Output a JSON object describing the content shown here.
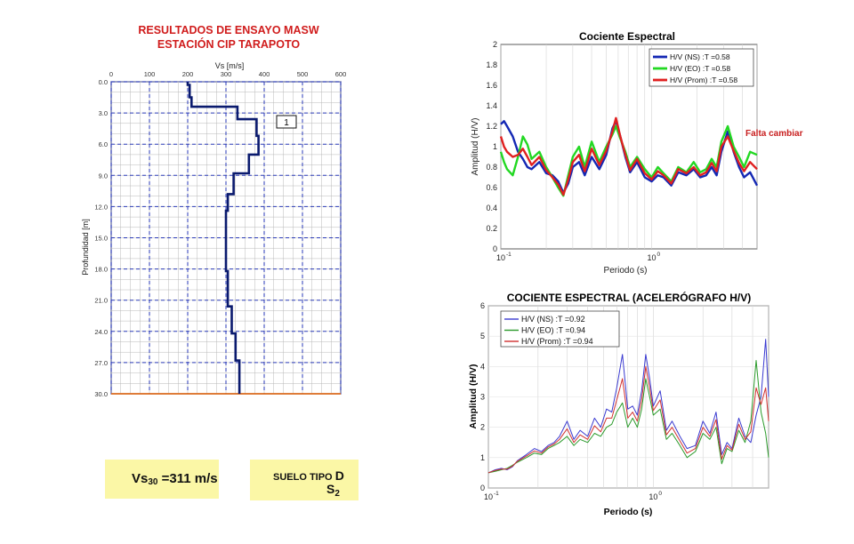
{
  "masw": {
    "title_line1": "RESULTADOS DE ENSAYO MASW",
    "title_line2": "ESTACIÓN CIP TARAPOTO",
    "layer_label": "1"
  },
  "vs30": {
    "prefix": "Vs",
    "sub": "30",
    "value": " =311 m/s"
  },
  "suelo": {
    "label": "SUELO TIPO ",
    "tipo": "D",
    "s_letter": "S",
    "s_sub": "2"
  },
  "annotation": {
    "text": "Falta cambiar",
    "color": "#c82020"
  },
  "chart_data": [
    {
      "type": "line",
      "title": "",
      "xlabel": "Vs [m/s]",
      "ylabel": "Profundidad [m]",
      "xlim": [
        0,
        600
      ],
      "ylim": [
        30,
        0
      ],
      "y_inverted": true,
      "grid": true,
      "x_ticks": [
        "0",
        "100",
        "200",
        "300",
        "400",
        "500",
        "600"
      ],
      "y_ticks": [
        "0.0",
        "3.0",
        "6.0",
        "9.0",
        "12.0",
        "15.0",
        "18.0",
        "21.0",
        "24.0",
        "27.0",
        "30.0"
      ],
      "series": [
        {
          "color": "#0a1a6e",
          "points": [
            [
              200,
              0
            ],
            [
              200,
              0.3
            ],
            [
              205,
              0.3
            ],
            [
              205,
              1.5
            ],
            [
              210,
              1.5
            ],
            [
              210,
              2.4
            ],
            [
              330,
              2.4
            ],
            [
              330,
              3.6
            ],
            [
              380,
              3.6
            ],
            [
              380,
              5.2
            ],
            [
              385,
              5.2
            ],
            [
              385,
              7.0
            ],
            [
              360,
              7.0
            ],
            [
              360,
              8.8
            ],
            [
              320,
              8.8
            ],
            [
              320,
              10.8
            ],
            [
              305,
              10.8
            ],
            [
              305,
              12.4
            ],
            [
              300,
              12.4
            ],
            [
              300,
              18.2
            ],
            [
              305,
              18.2
            ],
            [
              305,
              21.6
            ],
            [
              315,
              21.6
            ],
            [
              315,
              24.2
            ],
            [
              325,
              24.2
            ],
            [
              325,
              26.8
            ],
            [
              335,
              26.8
            ],
            [
              335,
              30
            ]
          ]
        }
      ]
    },
    {
      "type": "line",
      "title": "Cociente Espectral",
      "xlabel": "Periodo (s)",
      "ylabel": "Amplitud (H/V)",
      "x_scale": "log",
      "xlim": [
        0.1,
        5
      ],
      "ylim": [
        0,
        2
      ],
      "y_ticks": [
        "0",
        "0.2",
        "0.4",
        "0.6",
        "0.8",
        "1",
        "1.2",
        "1.4",
        "1.6",
        "1.8",
        "2"
      ],
      "x_ticks": [
        "10^-1",
        "10^0"
      ],
      "legend_position": "top-right",
      "series": [
        {
          "name": "H/V (NS) :T =0.58",
          "color": "#1428b4",
          "x": [
            0.1,
            0.105,
            0.11,
            0.12,
            0.13,
            0.14,
            0.15,
            0.16,
            0.18,
            0.2,
            0.22,
            0.24,
            0.26,
            0.28,
            0.3,
            0.33,
            0.36,
            0.4,
            0.45,
            0.5,
            0.55,
            0.58,
            0.62,
            0.67,
            0.72,
            0.8,
            0.9,
            1.0,
            1.1,
            1.2,
            1.35,
            1.5,
            1.7,
            1.9,
            2.1,
            2.3,
            2.5,
            2.7,
            2.9,
            3.2,
            3.5,
            3.8,
            4.1,
            4.5,
            5.0
          ],
          "y": [
            1.22,
            1.25,
            1.2,
            1.1,
            0.95,
            0.88,
            0.8,
            0.78,
            0.85,
            0.74,
            0.72,
            0.66,
            0.55,
            0.64,
            0.8,
            0.85,
            0.72,
            0.9,
            0.78,
            0.92,
            1.18,
            1.25,
            1.1,
            0.9,
            0.75,
            0.85,
            0.7,
            0.66,
            0.72,
            0.7,
            0.62,
            0.75,
            0.72,
            0.78,
            0.7,
            0.72,
            0.8,
            0.72,
            0.95,
            1.15,
            0.95,
            0.8,
            0.7,
            0.75,
            0.62
          ]
        },
        {
          "name": "H/V (EO) :T =0.58",
          "color": "#22d822",
          "x": [
            0.1,
            0.105,
            0.11,
            0.12,
            0.13,
            0.14,
            0.15,
            0.16,
            0.18,
            0.2,
            0.22,
            0.24,
            0.26,
            0.28,
            0.3,
            0.33,
            0.36,
            0.4,
            0.45,
            0.5,
            0.55,
            0.58,
            0.62,
            0.67,
            0.72,
            0.8,
            0.9,
            1.0,
            1.1,
            1.2,
            1.35,
            1.5,
            1.7,
            1.9,
            2.1,
            2.3,
            2.5,
            2.7,
            2.9,
            3.2,
            3.5,
            3.8,
            4.1,
            4.5,
            5.0
          ],
          "y": [
            0.95,
            0.85,
            0.78,
            0.72,
            0.9,
            1.1,
            1.02,
            0.88,
            0.95,
            0.8,
            0.7,
            0.6,
            0.52,
            0.72,
            0.9,
            1.0,
            0.8,
            1.05,
            0.85,
            1.0,
            1.12,
            1.2,
            1.08,
            0.95,
            0.8,
            0.9,
            0.78,
            0.7,
            0.8,
            0.74,
            0.66,
            0.8,
            0.75,
            0.85,
            0.75,
            0.78,
            0.88,
            0.8,
            1.05,
            1.2,
            1.0,
            0.9,
            0.8,
            0.95,
            0.92
          ]
        },
        {
          "name": "H/V (Prom) :T =0.58",
          "color": "#e02020",
          "x": [
            0.1,
            0.105,
            0.11,
            0.12,
            0.13,
            0.14,
            0.15,
            0.16,
            0.18,
            0.2,
            0.22,
            0.24,
            0.26,
            0.28,
            0.3,
            0.33,
            0.36,
            0.4,
            0.45,
            0.5,
            0.55,
            0.58,
            0.62,
            0.67,
            0.72,
            0.8,
            0.9,
            1.0,
            1.1,
            1.2,
            1.35,
            1.5,
            1.7,
            1.9,
            2.1,
            2.3,
            2.5,
            2.7,
            2.9,
            3.2,
            3.5,
            3.8,
            4.1,
            4.5,
            5.0
          ],
          "y": [
            1.1,
            1.0,
            0.95,
            0.9,
            0.92,
            0.98,
            0.9,
            0.82,
            0.9,
            0.77,
            0.7,
            0.63,
            0.53,
            0.68,
            0.85,
            0.92,
            0.76,
            0.98,
            0.82,
            0.96,
            1.15,
            1.28,
            1.1,
            0.92,
            0.77,
            0.88,
            0.74,
            0.68,
            0.76,
            0.72,
            0.64,
            0.78,
            0.74,
            0.8,
            0.72,
            0.75,
            0.84,
            0.76,
            1.0,
            1.1,
            0.96,
            0.84,
            0.76,
            0.85,
            0.78
          ]
        }
      ]
    },
    {
      "type": "line",
      "title": "COCIENTE ESPECTRAL (ACELERÓGRAFO H/V)",
      "xlabel": "Periodo (s)",
      "ylabel": "Amplitud (H/V)",
      "x_scale": "log",
      "xlim": [
        0.1,
        5
      ],
      "ylim": [
        0,
        6
      ],
      "y_ticks": [
        "0",
        "1",
        "2",
        "3",
        "4",
        "5",
        "6"
      ],
      "x_ticks": [
        "10^-1",
        "10^0"
      ],
      "legend_position": "top-left",
      "series": [
        {
          "name": "H/V (NS) :T =0.92",
          "color": "#3a3ad0",
          "x": [
            0.1,
            0.11,
            0.12,
            0.13,
            0.14,
            0.15,
            0.17,
            0.19,
            0.21,
            0.23,
            0.25,
            0.27,
            0.3,
            0.33,
            0.36,
            0.4,
            0.44,
            0.48,
            0.52,
            0.56,
            0.6,
            0.65,
            0.7,
            0.75,
            0.8,
            0.85,
            0.9,
            0.95,
            1.0,
            1.1,
            1.2,
            1.3,
            1.45,
            1.6,
            1.8,
            2.0,
            2.2,
            2.4,
            2.6,
            2.8,
            3.0,
            3.3,
            3.6,
            3.9,
            4.2,
            4.5,
            4.8,
            5.0
          ],
          "y": [
            0.5,
            0.6,
            0.65,
            0.6,
            0.7,
            0.9,
            1.1,
            1.3,
            1.2,
            1.4,
            1.5,
            1.7,
            2.2,
            1.6,
            1.9,
            1.7,
            2.3,
            2.0,
            2.6,
            2.5,
            3.3,
            4.4,
            2.6,
            2.7,
            2.4,
            3.2,
            4.4,
            3.6,
            2.7,
            3.2,
            1.9,
            2.2,
            1.7,
            1.3,
            1.4,
            2.2,
            1.8,
            2.5,
            1.1,
            1.5,
            1.3,
            2.3,
            1.7,
            1.5,
            2.4,
            3.0,
            4.9,
            3.0
          ]
        },
        {
          "name": "H/V (EO) :T =0.94",
          "color": "#2a9a2a",
          "x": [
            0.1,
            0.11,
            0.12,
            0.13,
            0.14,
            0.15,
            0.17,
            0.19,
            0.21,
            0.23,
            0.25,
            0.27,
            0.3,
            0.33,
            0.36,
            0.4,
            0.44,
            0.48,
            0.52,
            0.56,
            0.6,
            0.65,
            0.7,
            0.75,
            0.8,
            0.85,
            0.9,
            0.95,
            1.0,
            1.1,
            1.2,
            1.3,
            1.45,
            1.6,
            1.8,
            2.0,
            2.2,
            2.4,
            2.6,
            2.8,
            3.0,
            3.3,
            3.6,
            3.9,
            4.2,
            4.5,
            4.8,
            5.0
          ],
          "y": [
            0.5,
            0.55,
            0.6,
            0.65,
            0.75,
            0.85,
            1.0,
            1.15,
            1.1,
            1.3,
            1.4,
            1.5,
            1.7,
            1.4,
            1.6,
            1.5,
            1.8,
            1.7,
            2.0,
            2.1,
            2.5,
            2.8,
            2.0,
            2.3,
            2.0,
            2.6,
            3.6,
            3.0,
            2.4,
            2.6,
            1.6,
            1.8,
            1.4,
            1.0,
            1.2,
            1.8,
            1.6,
            2.0,
            0.8,
            1.3,
            1.2,
            1.9,
            1.5,
            2.2,
            4.2,
            2.5,
            1.8,
            1.0
          ]
        },
        {
          "name": "H/V (Prom) :T =0.94",
          "color": "#d03030",
          "x": [
            0.1,
            0.11,
            0.12,
            0.13,
            0.14,
            0.15,
            0.17,
            0.19,
            0.21,
            0.23,
            0.25,
            0.27,
            0.3,
            0.33,
            0.36,
            0.4,
            0.44,
            0.48,
            0.52,
            0.56,
            0.6,
            0.65,
            0.7,
            0.75,
            0.8,
            0.85,
            0.9,
            0.95,
            1.0,
            1.1,
            1.2,
            1.3,
            1.45,
            1.6,
            1.8,
            2.0,
            2.2,
            2.4,
            2.6,
            2.8,
            3.0,
            3.3,
            3.6,
            3.9,
            4.2,
            4.5,
            4.8,
            5.0
          ],
          "y": [
            0.5,
            0.58,
            0.62,
            0.62,
            0.72,
            0.88,
            1.05,
            1.22,
            1.15,
            1.35,
            1.45,
            1.6,
            1.95,
            1.5,
            1.75,
            1.6,
            2.05,
            1.85,
            2.3,
            2.3,
            2.9,
            3.6,
            2.3,
            2.5,
            2.2,
            2.9,
            4.0,
            3.3,
            2.55,
            2.9,
            1.75,
            2.0,
            1.55,
            1.15,
            1.3,
            2.0,
            1.7,
            2.25,
            0.95,
            1.4,
            1.25,
            2.1,
            1.6,
            1.85,
            3.3,
            2.75,
            3.3,
            2.2
          ]
        }
      ]
    }
  ]
}
